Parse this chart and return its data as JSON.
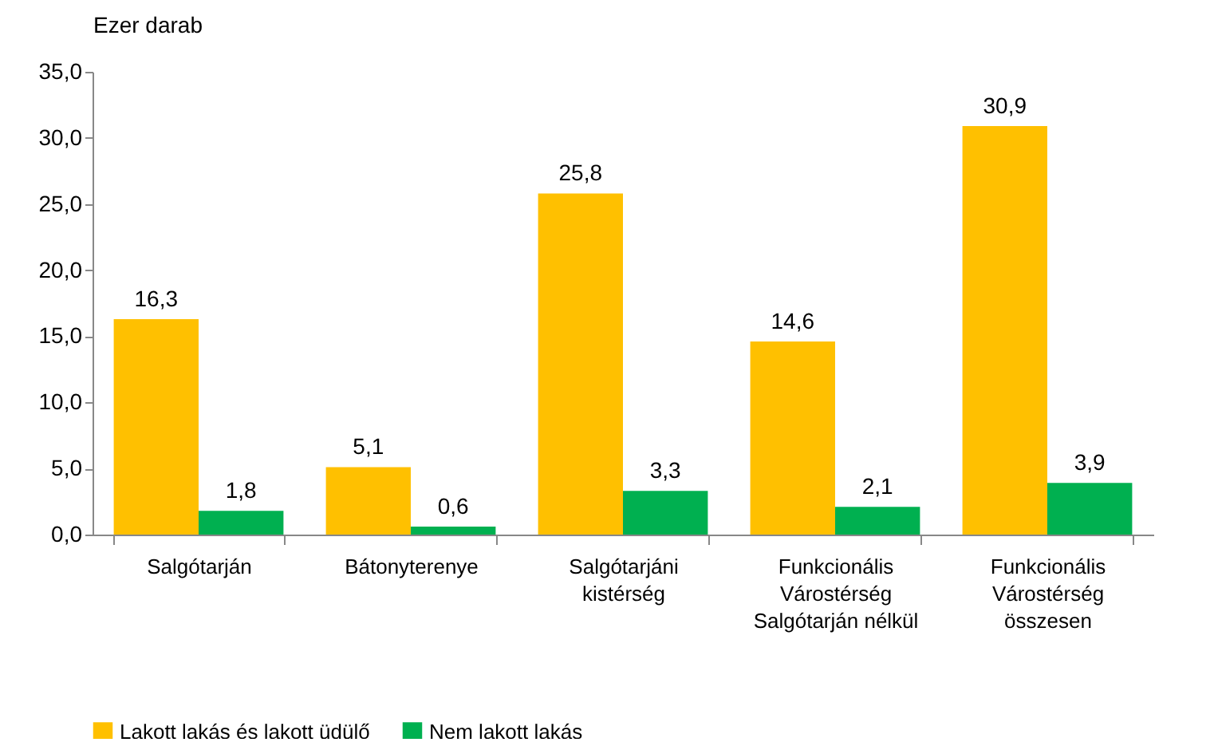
{
  "chart_data": {
    "type": "bar",
    "ylabel": "Ezer darab",
    "categories": [
      "Salgótarján",
      "Bátonyterenye",
      "Salgótarjáni kistérség",
      "Funkcionális Várostérség Salgótarján nélkül",
      "Funkcionális Várostérség összesen"
    ],
    "series": [
      {
        "name": "Lakott lakás és lakott üdülő",
        "color": "#ffc000",
        "values": [
          16.3,
          5.1,
          25.8,
          14.6,
          30.9
        ],
        "value_labels": [
          "16,3",
          "5,1",
          "25,8",
          "14,6",
          "30,9"
        ]
      },
      {
        "name": "Nem lakott lakás",
        "color": "#00b050",
        "values": [
          1.8,
          0.6,
          3.3,
          2.1,
          3.9
        ],
        "value_labels": [
          "1,8",
          "0,6",
          "3,3",
          "2,1",
          "3,9"
        ]
      }
    ],
    "ylim": [
      0,
      35
    ],
    "yticks": [
      {
        "value": 0,
        "label": "0,0"
      },
      {
        "value": 5,
        "label": "5,0"
      },
      {
        "value": 10,
        "label": "10,0"
      },
      {
        "value": 15,
        "label": "15,0"
      },
      {
        "value": 20,
        "label": "20,0"
      },
      {
        "value": 25,
        "label": "25,0"
      },
      {
        "value": 30,
        "label": "30,0"
      },
      {
        "value": 35,
        "label": "35,0"
      }
    ],
    "grid": false,
    "legend": "bottom"
  }
}
